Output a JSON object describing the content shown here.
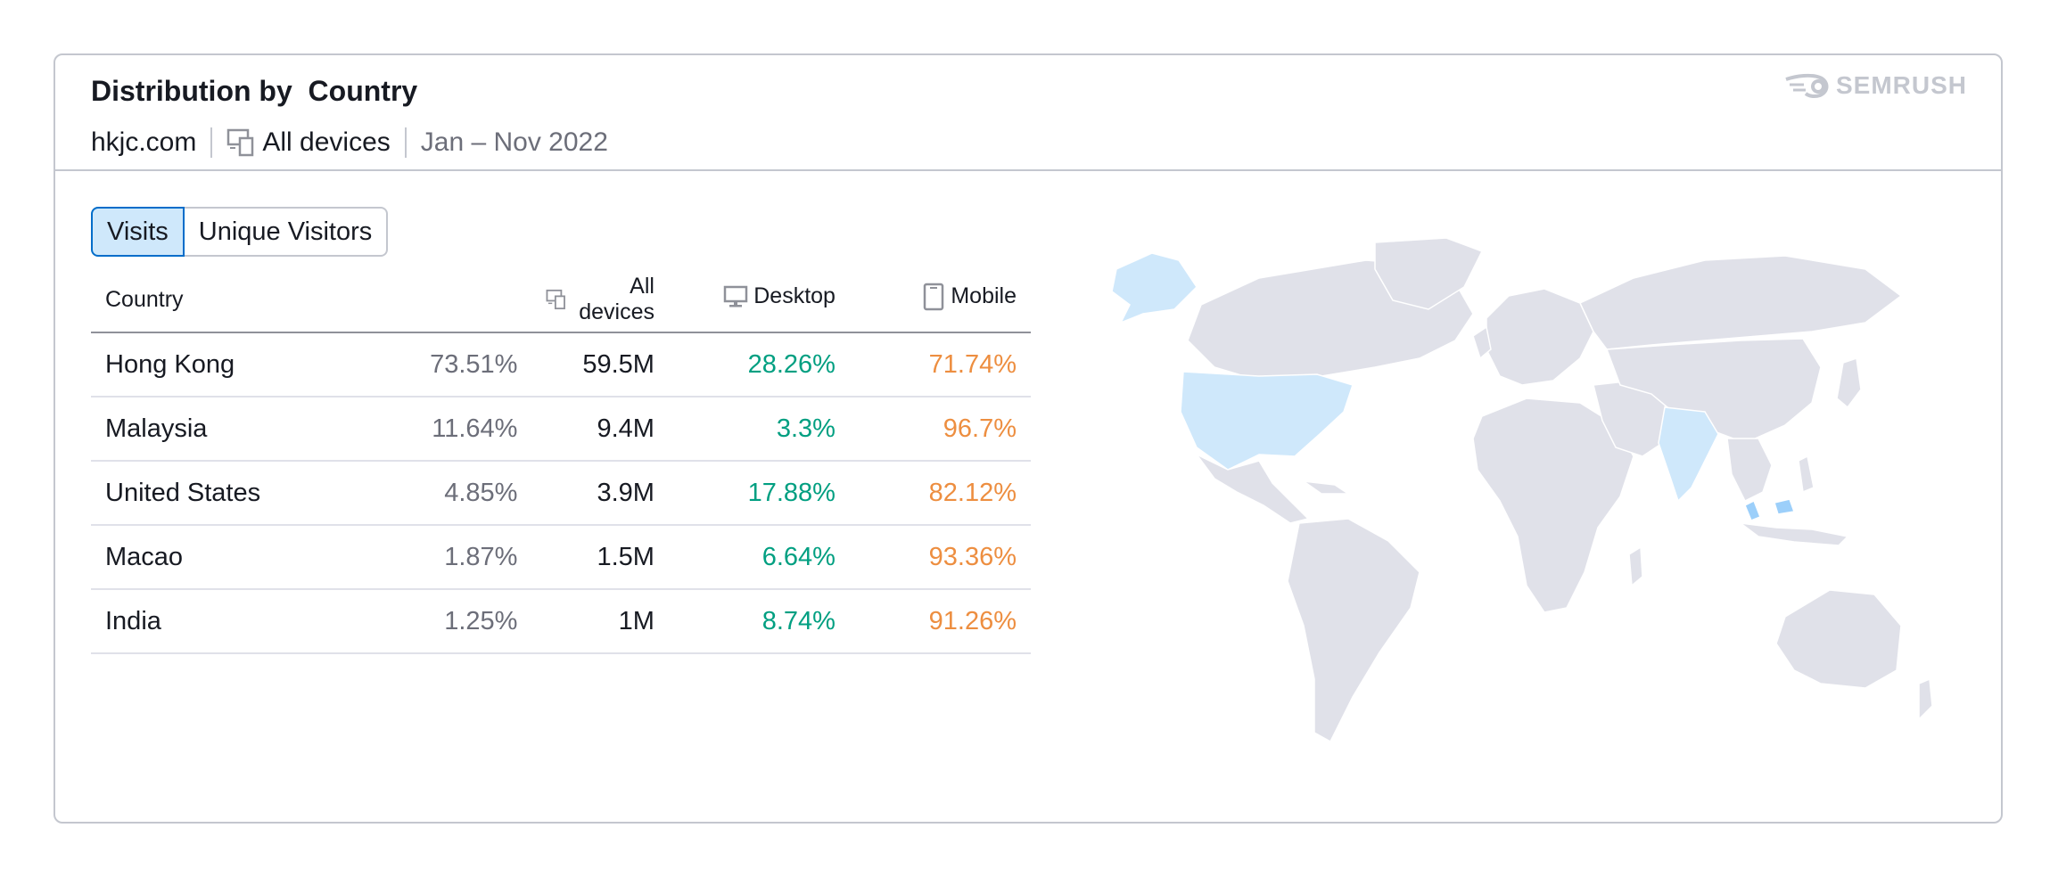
{
  "widget": {
    "title": "Distribution by  Country",
    "domain": "hkjc.com",
    "devices_label": "All devices",
    "date_range": "Jan – Nov 2022",
    "brand": "SEMRUSH"
  },
  "tabs": [
    {
      "label": "Visits",
      "active": true
    },
    {
      "label": "Unique Visitors",
      "active": false
    }
  ],
  "table": {
    "headers": {
      "country": "Country",
      "all_devices": "All devices",
      "desktop": "Desktop",
      "mobile": "Mobile"
    },
    "rows": [
      {
        "country": "Hong Kong",
        "share": "73.51%",
        "visits": "59.5M",
        "desktop": "28.26%",
        "mobile": "71.74%"
      },
      {
        "country": "Malaysia",
        "share": "11.64%",
        "visits": "9.4M",
        "desktop": "3.3%",
        "mobile": "96.7%"
      },
      {
        "country": "United States",
        "share": "4.85%",
        "visits": "3.9M",
        "desktop": "17.88%",
        "mobile": "82.12%"
      },
      {
        "country": "Macao",
        "share": "1.87%",
        "visits": "1.5M",
        "desktop": "6.64%",
        "mobile": "93.36%"
      },
      {
        "country": "India",
        "share": "1.25%",
        "visits": "1M",
        "desktop": "8.74%",
        "mobile": "91.26%"
      }
    ]
  },
  "map": {
    "highlighted_regions": [
      "Alaska",
      "United States",
      "India",
      "Malaysia"
    ],
    "colors": {
      "land": "#e0e1e9",
      "highlight": "#cfe8fb",
      "highlight_strong": "#9ccffa",
      "border": "#ffffff"
    }
  },
  "colors": {
    "desktop": "#009f81",
    "mobile": "#ed8e40",
    "muted": "#6c6e79",
    "active_tab_bg": "#cfe8fb",
    "active_tab_border": "#006dca"
  }
}
